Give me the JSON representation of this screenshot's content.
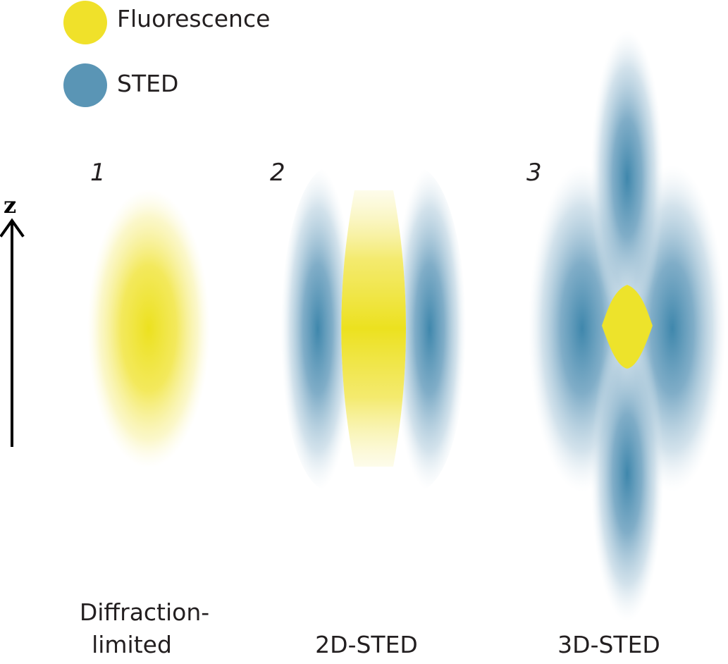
{
  "colors": {
    "fluorescence": "#f0e12a",
    "sted": "#5a95b5",
    "text": "#231f20"
  },
  "legend": {
    "fluorescence_label": "Fluorescence",
    "sted_label": "STED"
  },
  "axis": {
    "label": "z"
  },
  "panels": [
    {
      "number": "1",
      "caption_line1": "Diffraction-",
      "caption_line2": "limited"
    },
    {
      "number": "2",
      "caption": "2D-STED"
    },
    {
      "number": "3",
      "caption": "3D-STED"
    }
  ]
}
